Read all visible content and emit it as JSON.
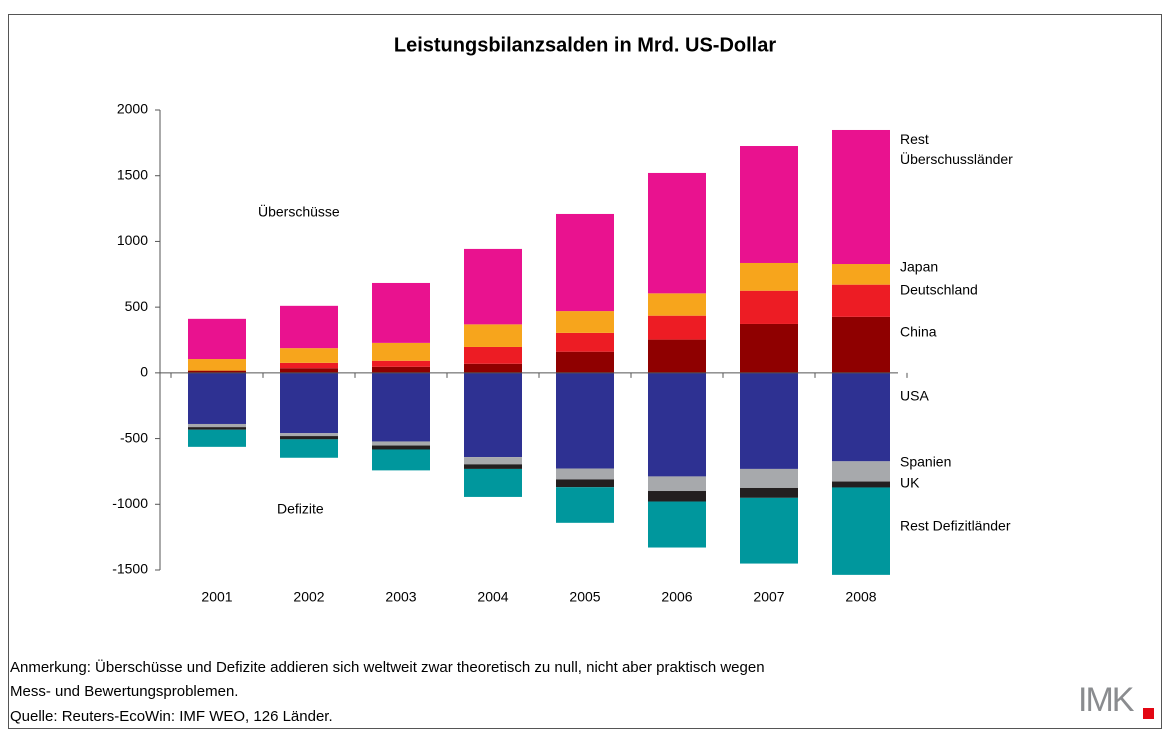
{
  "chart_data": {
    "type": "stacked-bar",
    "title": "Leistungsbilanzsalden in Mrd. US-Dollar",
    "categories": [
      "2001",
      "2002",
      "2003",
      "2004",
      "2005",
      "2006",
      "2007",
      "2008"
    ],
    "series": [
      {
        "name": "China",
        "color": "#8f0000",
        "values": [
          17,
          35,
          46,
          69,
          161,
          253,
          372,
          426
        ]
      },
      {
        "name": "Deutschland",
        "color": "#ed1c24",
        "values": [
          0,
          41,
          46,
          128,
          143,
          182,
          253,
          245
        ]
      },
      {
        "name": "Japan",
        "color": "#f7a51c",
        "values": [
          88,
          112,
          136,
          172,
          166,
          170,
          211,
          157
        ]
      },
      {
        "name": "Rest Überschussländer",
        "color": "#e9128f",
        "values": [
          306,
          322,
          456,
          574,
          739,
          916,
          890,
          1020
        ]
      },
      {
        "name": "USA",
        "color": "#2e3192",
        "values": [
          -389,
          -459,
          -522,
          -641,
          -728,
          -788,
          -731,
          -673
        ]
      },
      {
        "name": "Spanien",
        "color": "#a7a9ac",
        "values": [
          -24,
          -22,
          -31,
          -55,
          -83,
          -111,
          -145,
          -154
        ]
      },
      {
        "name": "UK",
        "color": "#231f20",
        "values": [
          -20,
          -25,
          -30,
          -35,
          -59,
          -80,
          -75,
          -45
        ]
      },
      {
        "name": "Rest Defizitländer",
        "color": "#00979d",
        "values": [
          -130,
          -140,
          -159,
          -213,
          -271,
          -350,
          -500,
          -665
        ]
      }
    ],
    "ylim": [
      -1500,
      2000
    ],
    "yticks": [
      -1500,
      -1000,
      -500,
      0,
      500,
      1000,
      1500,
      2000
    ],
    "annotations": [
      "Überschüsse",
      "Defizite"
    ],
    "notes": [
      "Anmerkung: Überschüsse und Defizite addieren sich weltweit zwar theoretisch zu null, nicht aber praktisch wegen",
      "Mess- und Bewertungsproblemen.",
      "Quelle: Reuters-EcoWin: IMF WEO, 126 Länder."
    ],
    "logo": "IMK"
  }
}
